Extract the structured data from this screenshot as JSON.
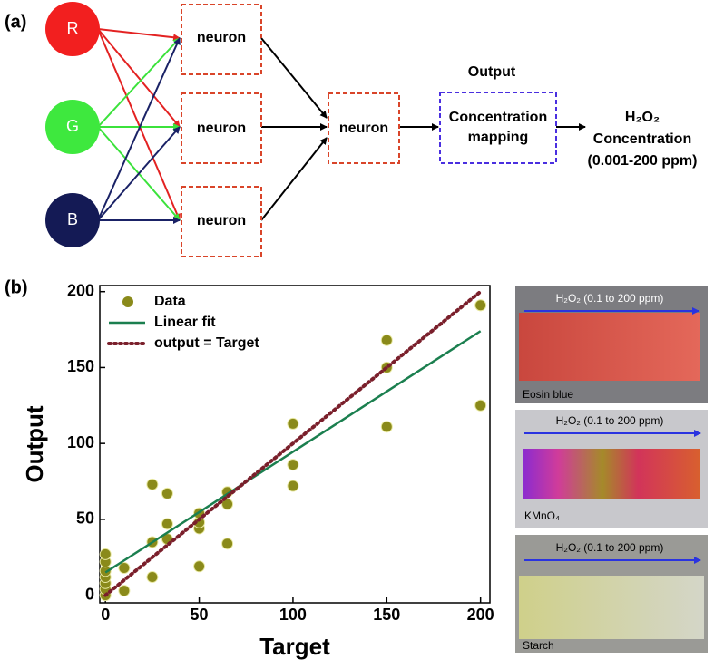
{
  "diagram": {
    "panel_label": "(a)",
    "inputs": [
      "R",
      "G",
      "B"
    ],
    "hidden": [
      "neuron",
      "neuron",
      "neuron"
    ],
    "middle": "neuron",
    "output_title": "Output",
    "output_box": [
      "Concentration",
      "mapping"
    ],
    "result": [
      "H₂O₂",
      "Concentration",
      "(0.001-200 ppm)"
    ]
  },
  "chart_data": {
    "type": "scatter",
    "panel_label": "(b)",
    "xlabel": "Target",
    "ylabel": "Output",
    "xlim": [
      -3,
      205
    ],
    "ylim": [
      -5,
      204
    ],
    "xticks": [
      0,
      50,
      100,
      150,
      200
    ],
    "yticks": [
      0,
      50,
      100,
      150,
      200
    ],
    "legend": "upper left",
    "series": [
      {
        "name": "Data",
        "style": "markers",
        "color": "#8a8a1a",
        "x": [
          0,
          0,
          0,
          0,
          0,
          0,
          0,
          10,
          10,
          25,
          25,
          25,
          33,
          33,
          33,
          50,
          50,
          50,
          50,
          65,
          65,
          65,
          100,
          100,
          100,
          150,
          150,
          150,
          200,
          200,
          200
        ],
        "values": [
          0,
          4,
          8,
          12,
          16,
          22,
          27,
          3,
          18,
          12,
          35,
          73,
          37,
          47,
          67,
          19,
          44,
          48,
          54,
          34,
          60,
          68,
          72,
          86,
          113,
          111,
          150,
          168,
          125,
          191,
          191
        ]
      },
      {
        "name": "Linear fit",
        "style": "line",
        "color": "#1b7f4f",
        "x": [
          0,
          200
        ],
        "values": [
          15,
          174
        ]
      },
      {
        "name": "output = Target",
        "style": "dotted",
        "color": "#7a1f2b",
        "x": [
          0,
          200
        ],
        "values": [
          0,
          200
        ]
      }
    ]
  },
  "photos": {
    "range_label": "H₂O₂ (0.1 to 200 ppm)",
    "names": [
      "Eosin blue",
      "KMnO₄",
      "Starch"
    ]
  }
}
